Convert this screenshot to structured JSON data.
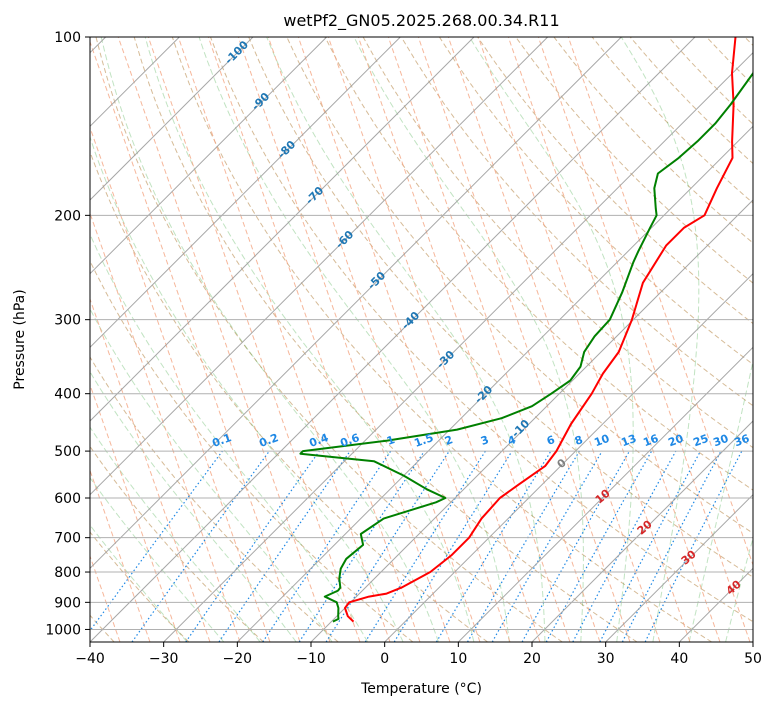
{
  "chart_data": {
    "type": "line",
    "title": "wetPf2_GN05.2025.268.00.34.R11",
    "xlabel": "Temperature (°C)",
    "ylabel": "Pressure (hPa)",
    "xlim": [
      -40,
      50
    ],
    "ylim": [
      1050,
      100
    ],
    "y_scale": "log",
    "skew_t": true,
    "grid": true,
    "x_ticks": [
      -40,
      -30,
      -20,
      -10,
      0,
      10,
      20,
      30,
      40,
      50
    ],
    "y_ticks": [
      100,
      200,
      300,
      400,
      500,
      600,
      700,
      800,
      900,
      1000
    ],
    "colors": {
      "temperature": "#ff0000",
      "dewpoint": "#008000",
      "isotherm_label": "#1f77b4",
      "mixing_ratio": "#1e88e5",
      "moist_adiabat_label": "#d62728",
      "zero_label": "#808080"
    },
    "series": [
      {
        "key": "temperature",
        "points": [
          [
            970,
            -7
          ],
          [
            950,
            -8.5
          ],
          [
            920,
            -10
          ],
          [
            900,
            -10.2
          ],
          [
            880,
            -8.3
          ],
          [
            870,
            -6.3
          ],
          [
            850,
            -5.1
          ],
          [
            800,
            -3.3
          ],
          [
            750,
            -2.7
          ],
          [
            700,
            -2.7
          ],
          [
            650,
            -3.6
          ],
          [
            600,
            -3.9
          ],
          [
            570,
            -3.2
          ],
          [
            530,
            -2.1
          ],
          [
            500,
            -2.6
          ],
          [
            450,
            -4.3
          ],
          [
            400,
            -5.6
          ],
          [
            370,
            -6.8
          ],
          [
            340,
            -7.6
          ],
          [
            300,
            -10.2
          ],
          [
            260,
            -13.7
          ],
          [
            225,
            -15.6
          ],
          [
            210,
            -15.6
          ],
          [
            200,
            -14.5
          ],
          [
            180,
            -16.5
          ],
          [
            160,
            -18.5
          ],
          [
            150,
            -20.8
          ],
          [
            130,
            -25.6
          ],
          [
            115,
            -30.1
          ],
          [
            100,
            -34.5
          ]
        ]
      },
      {
        "key": "dewpoint",
        "points": [
          [
            970,
            -9.8
          ],
          [
            960,
            -9.4
          ],
          [
            950,
            -9.8
          ],
          [
            920,
            -10.9
          ],
          [
            900,
            -11.9
          ],
          [
            880,
            -14.3
          ],
          [
            860,
            -13.3
          ],
          [
            850,
            -13.4
          ],
          [
            820,
            -14.8
          ],
          [
            790,
            -15.9
          ],
          [
            760,
            -16.5
          ],
          [
            720,
            -16.1
          ],
          [
            690,
            -17.9
          ],
          [
            650,
            -16.9
          ],
          [
            610,
            -12
          ],
          [
            600,
            -11.3
          ],
          [
            580,
            -15
          ],
          [
            550,
            -20
          ],
          [
            520,
            -26
          ],
          [
            505,
            -37
          ],
          [
            500,
            -37
          ],
          [
            480,
            -27
          ],
          [
            460,
            -19
          ],
          [
            440,
            -14.5
          ],
          [
            420,
            -12
          ],
          [
            400,
            -11.1
          ],
          [
            380,
            -10.3
          ],
          [
            360,
            -10.8
          ],
          [
            340,
            -12.3
          ],
          [
            320,
            -13
          ],
          [
            300,
            -13.2
          ],
          [
            270,
            -15.2
          ],
          [
            240,
            -17.8
          ],
          [
            230,
            -18.6
          ],
          [
            210,
            -20.2
          ],
          [
            200,
            -21
          ],
          [
            195,
            -22
          ],
          [
            180,
            -25
          ],
          [
            170,
            -26.5
          ],
          [
            160,
            -25.8
          ],
          [
            150,
            -25.5
          ],
          [
            140,
            -25.5
          ],
          [
            130,
            -26
          ],
          [
            115,
            -27.2
          ],
          [
            100,
            -31.5
          ]
        ]
      }
    ],
    "isotherm_labels": [
      "-100",
      "-90",
      "-80",
      "-70",
      "-60",
      "-50",
      "-40",
      "-30",
      "-20",
      "-10"
    ],
    "mixing_ratio_labels": [
      "0.1",
      "0.2",
      "0.4",
      "0.6",
      "1",
      "1.5",
      "2",
      "3",
      "4",
      "6",
      "8",
      "10",
      "13",
      "16",
      "20",
      "25",
      "30",
      "36"
    ],
    "moist_adiabat_labels": [
      "0",
      "10",
      "20",
      "30",
      "40"
    ]
  }
}
